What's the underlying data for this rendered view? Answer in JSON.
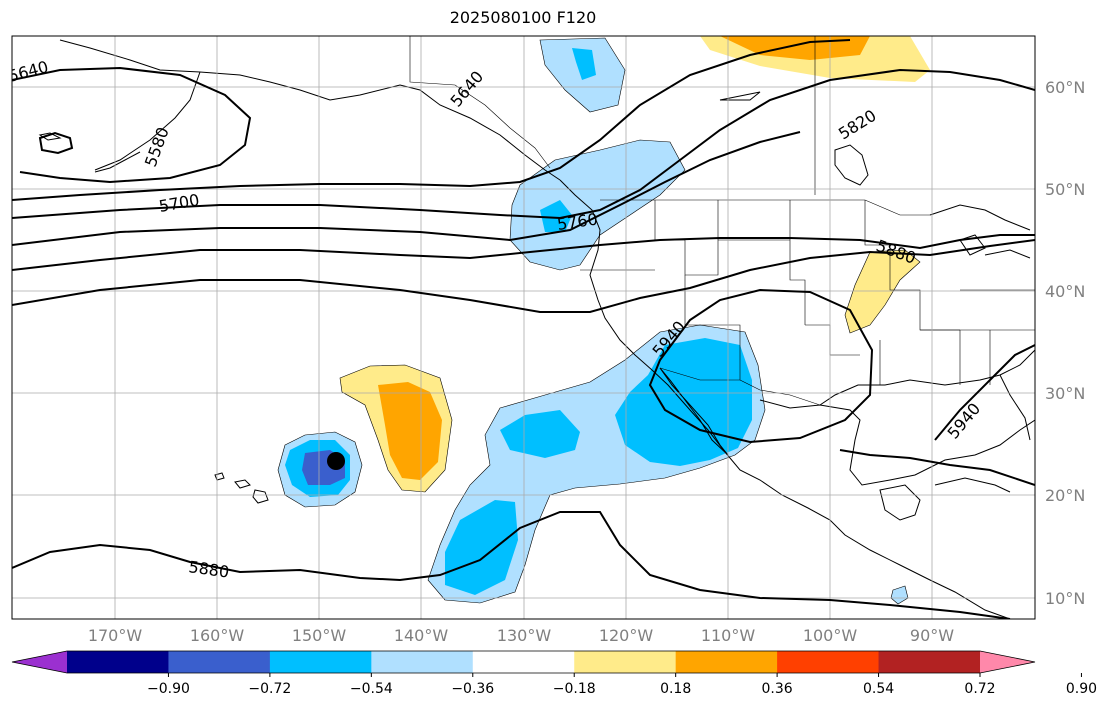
{
  "title": "2025080100 F120",
  "lat_labels": [
    "60°N",
    "50°N",
    "40°N",
    "30°N",
    "20°N",
    "10°N"
  ],
  "lon_labels": [
    "170°W",
    "160°W",
    "150°W",
    "140°W",
    "130°W",
    "120°W",
    "110°W",
    "100°W",
    "90°W"
  ],
  "contour_labels": [
    "5640",
    "5580",
    "5700",
    "5640",
    "5760",
    "5820",
    "5880",
    "5940",
    "5940",
    "5880"
  ],
  "colorbar": {
    "ticks": [
      "−0.90",
      "−0.72",
      "−0.54",
      "−0.36",
      "−0.18",
      "0.18",
      "0.36",
      "0.54",
      "0.72",
      "0.90"
    ],
    "colors": [
      "#9b30d0",
      "#00008b",
      "#3a5fcd",
      "#00bfff",
      "#b0e0ff",
      "#ffffff",
      "#ffeb8a",
      "#ffa500",
      "#ff4000",
      "#b22222",
      "#ff88aa"
    ]
  }
}
